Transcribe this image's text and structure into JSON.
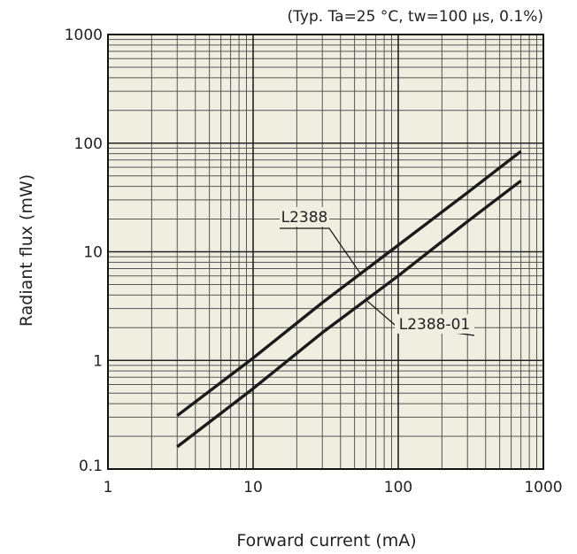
{
  "chart_data": {
    "type": "line",
    "title": "",
    "condition_note": "(Typ. Ta=25 °C, tw=100 µs, 0.1%)",
    "xlabel": "Forward current (mA)",
    "ylabel": "Radiant flux (mW)",
    "x_scale": "log",
    "y_scale": "log",
    "xlim": [
      1,
      1000
    ],
    "ylim": [
      0.1,
      1000
    ],
    "x_ticks": [
      1,
      10,
      100,
      1000
    ],
    "y_ticks": [
      0.1,
      1,
      10,
      100,
      1000
    ],
    "x_tick_labels": [
      "1",
      "10",
      "100",
      "1000"
    ],
    "y_tick_labels": [
      "0.1",
      "1",
      "10",
      "100",
      "1000"
    ],
    "grid": true,
    "colors": {
      "plot_background": "#f0eee1",
      "grid": "#555555",
      "line": "#1a1a1a"
    },
    "series": [
      {
        "name": "L2388",
        "points": [
          [
            3,
            0.31
          ],
          [
            10,
            1.05
          ],
          [
            30,
            3.4
          ],
          [
            100,
            11.5
          ],
          [
            300,
            35
          ],
          [
            700,
            84
          ]
        ]
      },
      {
        "name": "L2388-01",
        "points": [
          [
            3,
            0.16
          ],
          [
            10,
            0.55
          ],
          [
            30,
            1.8
          ],
          [
            100,
            6.0
          ],
          [
            300,
            19
          ],
          [
            700,
            45
          ]
        ]
      }
    ]
  }
}
